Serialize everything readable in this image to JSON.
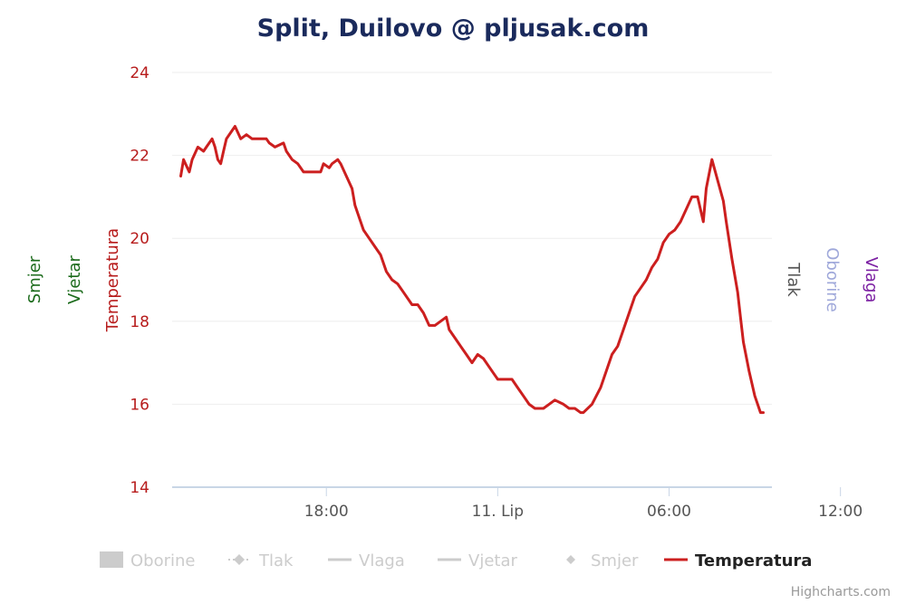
{
  "chart_data": {
    "type": "line",
    "title": "Split, Duilovo @ pljusak.com",
    "credits": "Highcharts.com",
    "ylim": [
      14,
      24
    ],
    "yticks": [
      14,
      16,
      18,
      20,
      22,
      24
    ],
    "xticks": [
      {
        "label": "18:00",
        "t": 18
      },
      {
        "label": "11. Lip",
        "t": 24
      },
      {
        "label": "06:00",
        "t": 30
      },
      {
        "label": "12:00",
        "t": 36
      }
    ],
    "axes": {
      "left": [
        {
          "label": "Smjer",
          "color": "#1b6b1b"
        },
        {
          "label": "Vjetar",
          "color": "#1b6b1b"
        },
        {
          "label": "Temperatura",
          "color": "#b71c1c"
        }
      ],
      "right": [
        {
          "label": "Tlak",
          "color": "#555555"
        },
        {
          "label": "Oborine",
          "color": "#9fa8da"
        },
        {
          "label": "Vlaga",
          "color": "#7b1fa2"
        }
      ]
    },
    "legend": [
      {
        "name": "Oborine",
        "symbol": "column",
        "active": false
      },
      {
        "name": "Tlak",
        "symbol": "line-diamond",
        "active": false
      },
      {
        "name": "Vlaga",
        "symbol": "line",
        "active": false
      },
      {
        "name": "Vjetar",
        "symbol": "line",
        "active": false
      },
      {
        "name": "Smjer",
        "symbol": "diamond",
        "active": false
      },
      {
        "name": "Temperatura",
        "symbol": "line",
        "active": true
      }
    ],
    "series": [
      {
        "name": "Temperatura",
        "color": "#cc1f1f",
        "points": [
          [
            12.9,
            21.5
          ],
          [
            13.0,
            21.9
          ],
          [
            13.2,
            21.6
          ],
          [
            13.3,
            21.9
          ],
          [
            13.5,
            22.2
          ],
          [
            13.7,
            22.1
          ],
          [
            13.8,
            22.2
          ],
          [
            14.0,
            22.4
          ],
          [
            14.1,
            22.2
          ],
          [
            14.2,
            21.9
          ],
          [
            14.3,
            21.8
          ],
          [
            14.4,
            22.1
          ],
          [
            14.5,
            22.4
          ],
          [
            14.7,
            22.6
          ],
          [
            14.8,
            22.7
          ],
          [
            15.0,
            22.4
          ],
          [
            15.2,
            22.5
          ],
          [
            15.4,
            22.4
          ],
          [
            15.7,
            22.4
          ],
          [
            15.9,
            22.4
          ],
          [
            16.0,
            22.3
          ],
          [
            16.2,
            22.2
          ],
          [
            16.5,
            22.3
          ],
          [
            16.6,
            22.1
          ],
          [
            16.8,
            21.9
          ],
          [
            17.0,
            21.8
          ],
          [
            17.2,
            21.6
          ],
          [
            17.4,
            21.6
          ],
          [
            17.6,
            21.6
          ],
          [
            17.8,
            21.6
          ],
          [
            17.9,
            21.8
          ],
          [
            18.1,
            21.7
          ],
          [
            18.2,
            21.8
          ],
          [
            18.4,
            21.9
          ],
          [
            18.5,
            21.8
          ],
          [
            18.7,
            21.5
          ],
          [
            18.9,
            21.2
          ],
          [
            19.0,
            20.8
          ],
          [
            19.1,
            20.6
          ],
          [
            19.3,
            20.2
          ],
          [
            19.5,
            20.0
          ],
          [
            19.7,
            19.8
          ],
          [
            19.9,
            19.6
          ],
          [
            20.1,
            19.2
          ],
          [
            20.3,
            19.0
          ],
          [
            20.5,
            18.9
          ],
          [
            20.7,
            18.7
          ],
          [
            21.0,
            18.4
          ],
          [
            21.2,
            18.4
          ],
          [
            21.4,
            18.2
          ],
          [
            21.6,
            17.9
          ],
          [
            21.8,
            17.9
          ],
          [
            22.0,
            18.0
          ],
          [
            22.2,
            18.1
          ],
          [
            22.3,
            17.8
          ],
          [
            22.5,
            17.6
          ],
          [
            22.7,
            17.4
          ],
          [
            22.9,
            17.2
          ],
          [
            23.1,
            17.0
          ],
          [
            23.3,
            17.2
          ],
          [
            23.5,
            17.1
          ],
          [
            23.7,
            16.9
          ],
          [
            23.9,
            16.7
          ],
          [
            24.0,
            16.6
          ],
          [
            24.3,
            16.6
          ],
          [
            24.5,
            16.6
          ],
          [
            24.7,
            16.4
          ],
          [
            24.9,
            16.2
          ],
          [
            25.1,
            16.0
          ],
          [
            25.3,
            15.9
          ],
          [
            25.5,
            15.9
          ],
          [
            25.6,
            15.9
          ],
          [
            25.8,
            16.0
          ],
          [
            26.0,
            16.1
          ],
          [
            26.3,
            16.0
          ],
          [
            26.5,
            15.9
          ],
          [
            26.7,
            15.9
          ],
          [
            26.9,
            15.8
          ],
          [
            27.0,
            15.8
          ],
          [
            27.3,
            16.0
          ],
          [
            27.6,
            16.4
          ],
          [
            27.8,
            16.8
          ],
          [
            28.0,
            17.2
          ],
          [
            28.2,
            17.4
          ],
          [
            28.4,
            17.8
          ],
          [
            28.6,
            18.2
          ],
          [
            28.8,
            18.6
          ],
          [
            29.0,
            18.8
          ],
          [
            29.2,
            19.0
          ],
          [
            29.4,
            19.3
          ],
          [
            29.6,
            19.5
          ],
          [
            29.8,
            19.9
          ],
          [
            30.0,
            20.1
          ],
          [
            30.2,
            20.2
          ],
          [
            30.4,
            20.4
          ],
          [
            30.6,
            20.7
          ],
          [
            30.8,
            21.0
          ],
          [
            31.0,
            21.0
          ],
          [
            31.2,
            20.4
          ],
          [
            31.3,
            21.2
          ],
          [
            31.5,
            21.9
          ],
          [
            31.7,
            21.4
          ],
          [
            31.9,
            20.9
          ],
          [
            32.0,
            20.4
          ],
          [
            32.2,
            19.5
          ],
          [
            32.4,
            18.7
          ],
          [
            32.5,
            18.1
          ],
          [
            32.6,
            17.5
          ],
          [
            32.8,
            16.8
          ],
          [
            33.0,
            16.2
          ],
          [
            33.2,
            15.8
          ],
          [
            33.3,
            15.8
          ]
        ]
      }
    ]
  }
}
